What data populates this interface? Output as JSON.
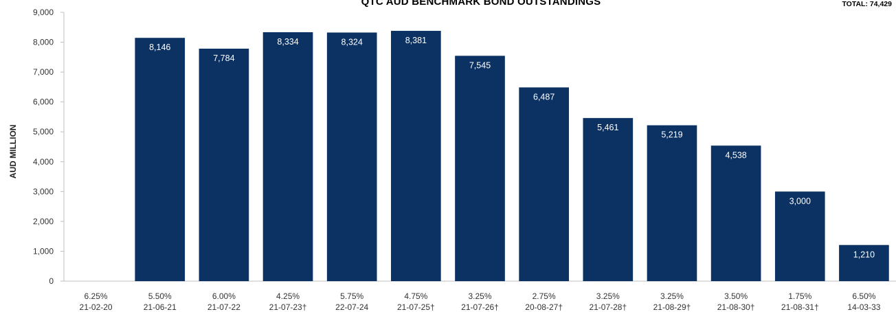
{
  "chart_data": {
    "type": "bar",
    "title": "QTC AUD BENCHMARK BOND OUTSTANDINGS",
    "total_label": "TOTAL: 74,429",
    "ylabel": "AUD MILLION",
    "xlabel": "",
    "ylim": [
      0,
      9000
    ],
    "yticks": [
      "0",
      "1,000",
      "2,000",
      "3,000",
      "4,000",
      "5,000",
      "6,000",
      "7,000",
      "8,000",
      "9,000"
    ],
    "grid": false,
    "bar_color": "#0b3263",
    "categories": [
      {
        "coupon": "6.25%",
        "date": "21-02-20"
      },
      {
        "coupon": "5.50%",
        "date": "21-06-21"
      },
      {
        "coupon": "6.00%",
        "date": "21-07-22"
      },
      {
        "coupon": "4.25%",
        "date": "21-07-23†"
      },
      {
        "coupon": "5.75%",
        "date": "22-07-24"
      },
      {
        "coupon": "4.75%",
        "date": "21-07-25†"
      },
      {
        "coupon": "3.25%",
        "date": "21-07-26†"
      },
      {
        "coupon": "2.75%",
        "date": "20-08-27†"
      },
      {
        "coupon": "3.25%",
        "date": "21-07-28†"
      },
      {
        "coupon": "3.25%",
        "date": "21-08-29†"
      },
      {
        "coupon": "3.50%",
        "date": "21-08-30†"
      },
      {
        "coupon": "1.75%",
        "date": "21-08-31†"
      },
      {
        "coupon": "6.50%",
        "date": "14-03-33"
      }
    ],
    "values": [
      null,
      8146,
      7784,
      8334,
      8324,
      8381,
      7545,
      6487,
      5461,
      5219,
      4538,
      3000,
      1210
    ],
    "value_labels": [
      "",
      "8,146",
      "7,784",
      "8,334",
      "8,324",
      "8,381",
      "7,545",
      "6,487",
      "5,461",
      "5,219",
      "4,538",
      "3,000",
      "1,210"
    ]
  }
}
